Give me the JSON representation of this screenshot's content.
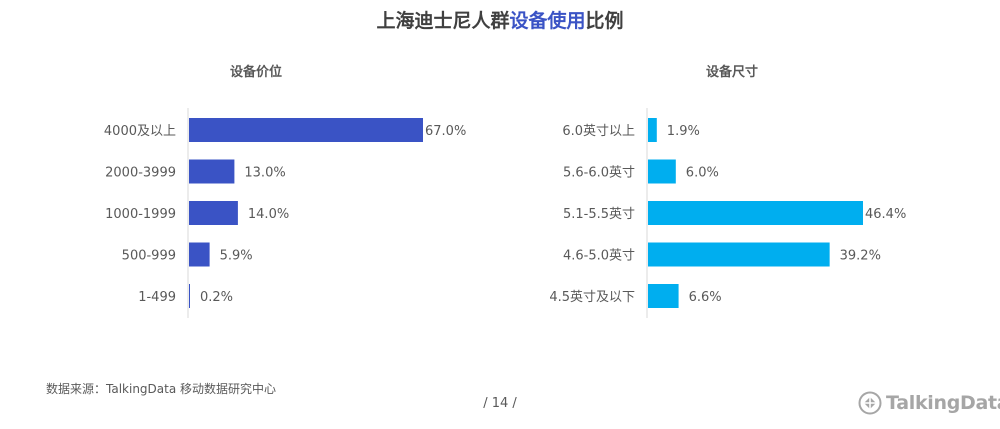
{
  "title": {
    "prefix": "上海迪士尼人群",
    "highlight": "设备使用",
    "suffix": "比例"
  },
  "chart_data": [
    {
      "type": "bar",
      "orientation": "horizontal",
      "title": "设备价位",
      "categories": [
        "4000及以上",
        "2000-3999",
        "1000-1999",
        "500-999",
        "1-499"
      ],
      "values": [
        67.0,
        13.0,
        14.0,
        5.9,
        0.2
      ],
      "labels": [
        "67.0%",
        "13.0%",
        "14.0%",
        "5.9%",
        "0.2%"
      ],
      "color": "#3a53c5",
      "xlim": [
        0,
        67
      ]
    },
    {
      "type": "bar",
      "orientation": "horizontal",
      "title": "设备尺寸",
      "categories": [
        "6.0英寸以上",
        "5.6-6.0英寸",
        "5.1-5.5英寸",
        "4.6-5.0英寸",
        "4.5英寸及以下"
      ],
      "values": [
        1.9,
        6.0,
        46.4,
        39.2,
        6.6
      ],
      "labels": [
        "1.9%",
        "6.0%",
        "46.4%",
        "39.2%",
        "6.6%"
      ],
      "color": "#00aeef",
      "xlim": [
        0,
        46.4
      ]
    }
  ],
  "footer": {
    "source": "数据来源：TalkingData 移动数据研究中心",
    "page": "/ 14 /",
    "logo": "TalkingData"
  },
  "colors": {
    "logo": "#a6a6a6",
    "axis": "#d9d9d9"
  }
}
